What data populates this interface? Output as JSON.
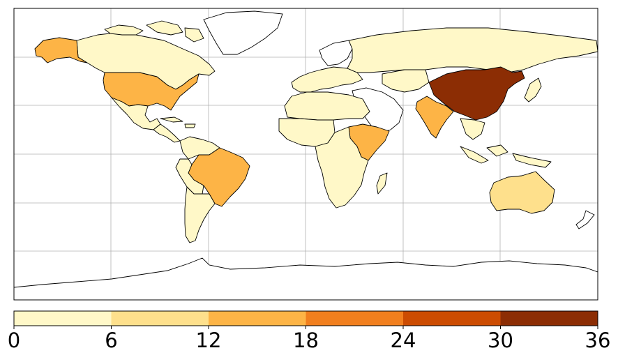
{
  "colorbar": {
    "ticks": [
      "0",
      "6",
      "12",
      "18",
      "24",
      "30",
      "36"
    ],
    "bins": [
      {
        "from": 0,
        "to": 6,
        "color": "#fff8c8"
      },
      {
        "from": 6,
        "to": 12,
        "color": "#fee08c"
      },
      {
        "from": 12,
        "to": 18,
        "color": "#fdb446"
      },
      {
        "from": 18,
        "to": 24,
        "color": "#f17f1e"
      },
      {
        "from": 24,
        "to": 30,
        "color": "#cc4c02"
      },
      {
        "from": 30,
        "to": 36,
        "color": "#8c2d04"
      }
    ],
    "range": [
      0,
      36
    ]
  },
  "map": {
    "projection": "plate-carree",
    "gridlines": true,
    "no_data_color": "#ffffff",
    "regions": [
      {
        "name": "China",
        "bin": 5
      },
      {
        "name": "United States",
        "bin": 2
      },
      {
        "name": "Brazil",
        "bin": 2
      },
      {
        "name": "India",
        "bin": 2
      },
      {
        "name": "Ethiopia",
        "bin": 2
      },
      {
        "name": "Somalia",
        "bin": 2
      },
      {
        "name": "Alaska",
        "bin": 2
      },
      {
        "name": "Australia",
        "bin": 1
      },
      {
        "name": "Canada",
        "bin": 0
      },
      {
        "name": "Russia",
        "bin": 0
      },
      {
        "name": "Mexico",
        "bin": 0
      },
      {
        "name": "Argentina",
        "bin": 0
      },
      {
        "name": "Greenland",
        "bin": -1
      },
      {
        "name": "Antarctica",
        "bin": -1
      }
    ]
  }
}
